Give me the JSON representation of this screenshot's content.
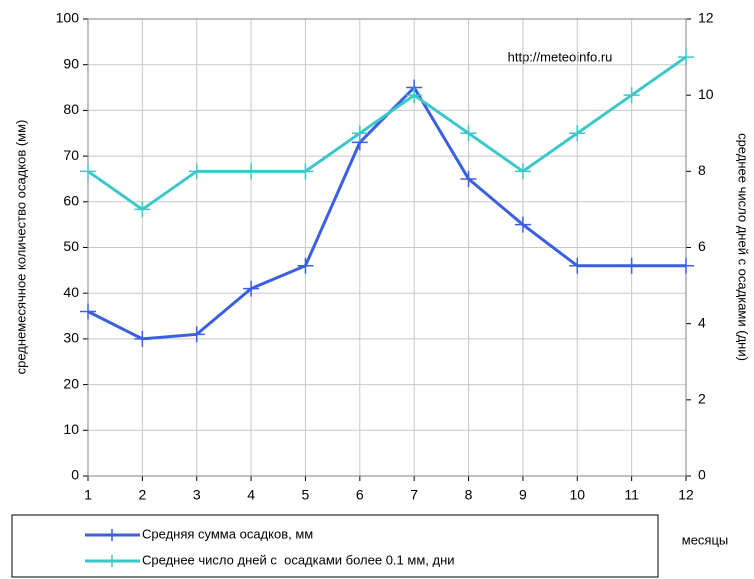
{
  "chart_data": {
    "type": "line",
    "annotation": "http://meteoinfo.ru",
    "xlabel": "месяцы",
    "ylabel": "среднемесячное количество осадков (мм)",
    "y2label": "среднее число дней с осадками (дни)",
    "x": [
      1,
      2,
      3,
      4,
      5,
      6,
      7,
      8,
      9,
      10,
      11,
      12
    ],
    "xlim": [
      1,
      12
    ],
    "xticks": [
      1,
      2,
      3,
      4,
      5,
      6,
      7,
      8,
      9,
      10,
      11,
      12
    ],
    "ylim": [
      0,
      100
    ],
    "yticks": [
      0,
      10,
      20,
      30,
      40,
      50,
      60,
      70,
      80,
      90,
      100
    ],
    "y2lim": [
      0,
      12
    ],
    "y2ticks": [
      0,
      2,
      4,
      6,
      8,
      10,
      12
    ],
    "grid": true,
    "legend": "bottom",
    "series": [
      {
        "name": "Средняя сумма осадков, мм",
        "color": "#3a5fe0",
        "values": [
          36,
          30,
          31,
          41,
          46,
          73,
          85,
          65,
          55,
          46,
          46,
          46
        ]
      },
      {
        "name": "Среднее число дней с  осадками более 0.1 мм, дни",
        "color": "#3cc8c8",
        "axis": "y2",
        "values": [
          8,
          7,
          8,
          8,
          8,
          9,
          10,
          9,
          8,
          9,
          10,
          11
        ]
      }
    ]
  }
}
